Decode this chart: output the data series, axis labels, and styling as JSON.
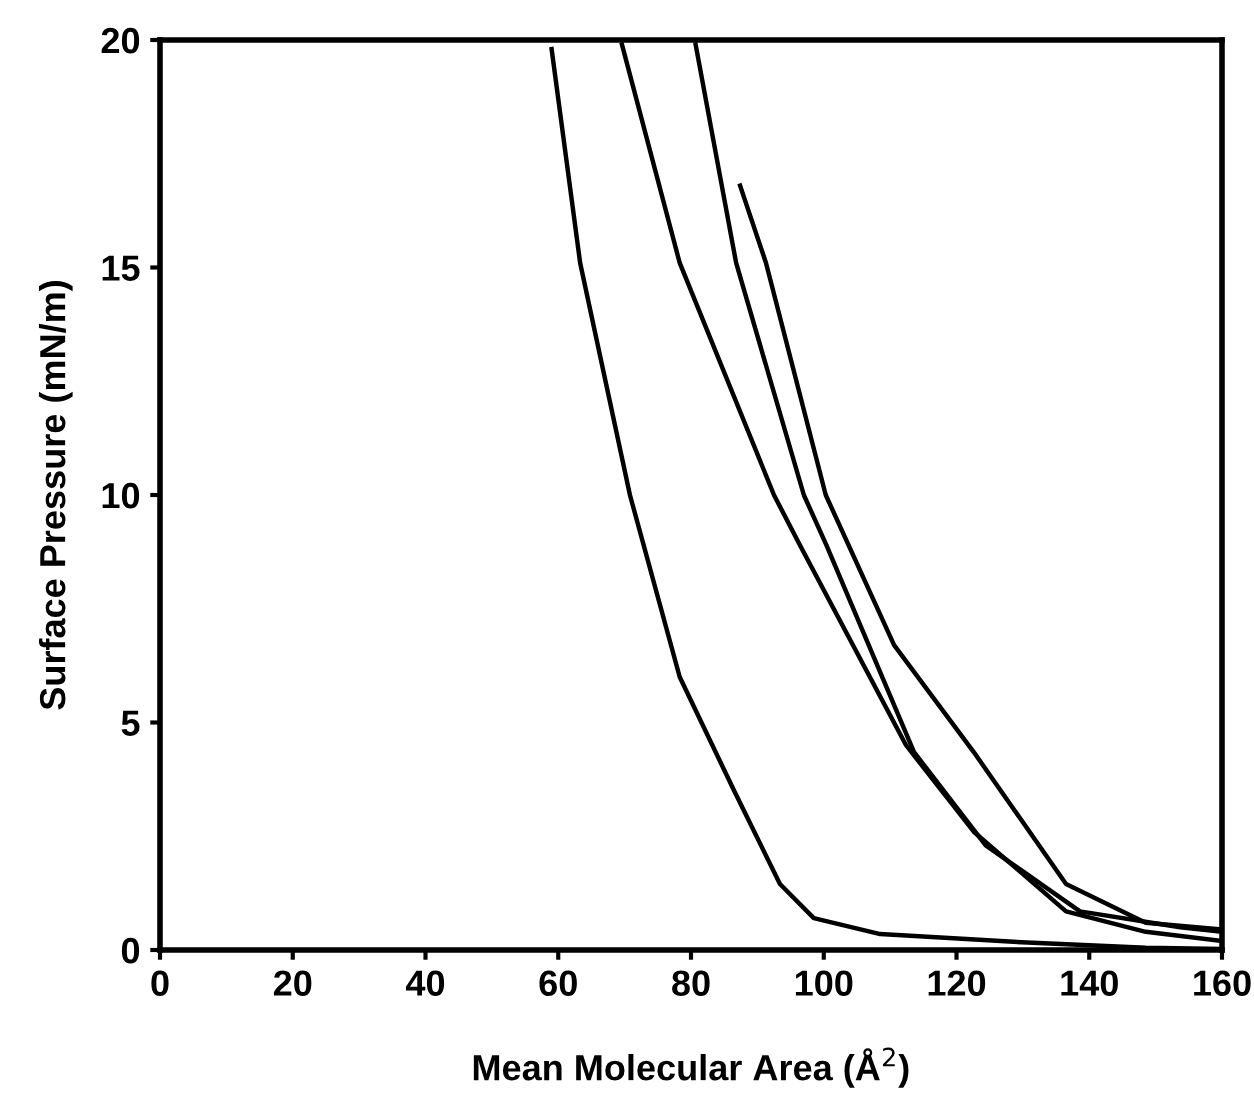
{
  "chart_data": {
    "type": "line",
    "xlabel": "Mean Molecular Area (Å$^{2}$)",
    "ylabel": "Surface Pressure (mN/m)",
    "xlim": [
      0,
      160
    ],
    "ylim": [
      0,
      20
    ],
    "xticks": [
      0,
      20,
      40,
      60,
      80,
      100,
      120,
      140,
      160
    ],
    "yticks": [
      0,
      5,
      10,
      15,
      20
    ],
    "grid": false,
    "legend": false,
    "marker": "none",
    "line_style": "solid",
    "series": [
      {
        "color": "#000000",
        "x": [
          59,
          63.3,
          70.8,
          78.3,
          86.5,
          93.4,
          98.5,
          108.5,
          128.6,
          148.5,
          160
        ],
        "values": [
          19.8,
          15.1,
          10.0,
          6.0,
          3.5,
          1.45,
          0.7,
          0.35,
          0.18,
          0.05,
          0.02
        ]
      },
      {
        "color": "#000000",
        "x": [
          69.6,
          78.3,
          92.5,
          96.4,
          112.4,
          122.6,
          136.5,
          148.5,
          160
        ],
        "values": [
          19.9,
          15.1,
          10.0,
          8.9,
          4.5,
          2.6,
          0.85,
          0.4,
          0.2
        ]
      },
      {
        "color": "#000000",
        "x": [
          80.7,
          86.8,
          97,
          100.4,
          113.6,
          124.4,
          138.6,
          153.7,
          160
        ],
        "values": [
          19.9,
          15.1,
          10.0,
          8.9,
          4.35,
          2.3,
          0.85,
          0.5,
          0.4
        ]
      },
      {
        "color": "#000000",
        "x": [
          87.4,
          91.3,
          100.3,
          110.6,
          122.6,
          136.5,
          148.5,
          160
        ],
        "values": [
          16.8,
          15.1,
          10.0,
          6.7,
          4.35,
          1.45,
          0.6,
          0.45
        ]
      }
    ]
  }
}
